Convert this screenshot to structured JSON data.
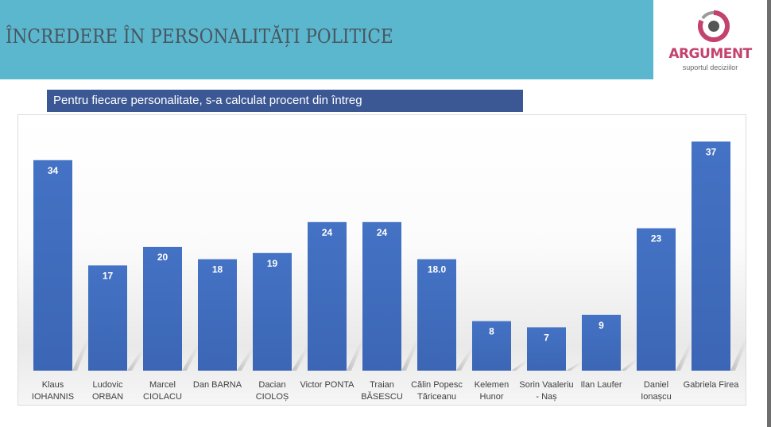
{
  "header": {
    "title": "ÎNCREDERE ÎN PERSONALITĂȚI POLITICE",
    "band_color": "#5bb7cd"
  },
  "logo": {
    "name": "ARGUMENT",
    "tagline": "suportul deciziilor",
    "icon": "target-ring-icon",
    "brand_color": "#c4426f"
  },
  "subtitle": "Pentru fiecare personalitate, s-a calculat procent din întreg",
  "chart_data": {
    "type": "bar",
    "title": "",
    "xlabel": "",
    "ylabel": "",
    "ylim": [
      0,
      40
    ],
    "grid": false,
    "legend": "none",
    "bar_color": "#4472c4",
    "categories": [
      [
        "Klaus",
        "IOHANNIS"
      ],
      [
        "Ludovic",
        "ORBAN"
      ],
      [
        "Marcel",
        "CIOLACU"
      ],
      [
        "Dan BARNA"
      ],
      [
        "Dacian",
        "CIOLOȘ"
      ],
      [
        "Victor PONTA"
      ],
      [
        "Traian",
        "BĂSESCU"
      ],
      [
        "Călin Popesc",
        "Tăriceanu"
      ],
      [
        "Kelemen",
        "Hunor"
      ],
      [
        "Sorin Vaaleriu",
        "- Naș"
      ],
      [
        "Ilan Laufer"
      ],
      [
        "Daniel",
        "Ionașcu"
      ],
      [
        "Gabriela Firea"
      ]
    ],
    "values": [
      34,
      17,
      20,
      18,
      19,
      24,
      24,
      18.0,
      8,
      7,
      9,
      23,
      37
    ],
    "data_labels": [
      "34",
      "17",
      "20",
      "18",
      "19",
      "24",
      "24",
      "18.0",
      "8",
      "7",
      "9",
      "23",
      "37"
    ]
  }
}
